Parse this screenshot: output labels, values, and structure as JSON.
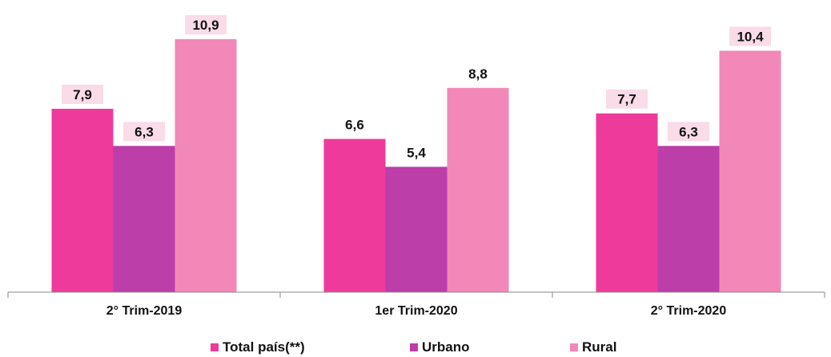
{
  "chart_data": {
    "type": "bar",
    "title": "",
    "xlabel": "",
    "ylabel": "",
    "ylim": [
      0,
      12
    ],
    "grid": false,
    "legend_position": "bottom",
    "categories": [
      "2° Trim-2019",
      "1er Trim-2020",
      "2° Trim-2020"
    ],
    "series": [
      {
        "name": "Total país(**)",
        "color": "#ee3a9a",
        "values": [
          7.9,
          6.6,
          7.7
        ],
        "labels": [
          "7,9",
          "6,6",
          "7,7"
        ],
        "label_highlight": [
          true,
          false,
          true
        ]
      },
      {
        "name": "Urbano",
        "color": "#bb3ea9",
        "values": [
          6.3,
          5.4,
          6.3
        ],
        "labels": [
          "6,3",
          "5,4",
          "6,3"
        ],
        "label_highlight": [
          true,
          false,
          true
        ]
      },
      {
        "name": "Rural",
        "color": "#f288b8",
        "values": [
          10.9,
          8.8,
          10.4
        ],
        "labels": [
          "10,9",
          "8,8",
          "10,4"
        ],
        "label_highlight": [
          true,
          false,
          true
        ]
      }
    ],
    "label_highlight_color": "#fadbe8",
    "axis_color": "#888888"
  }
}
